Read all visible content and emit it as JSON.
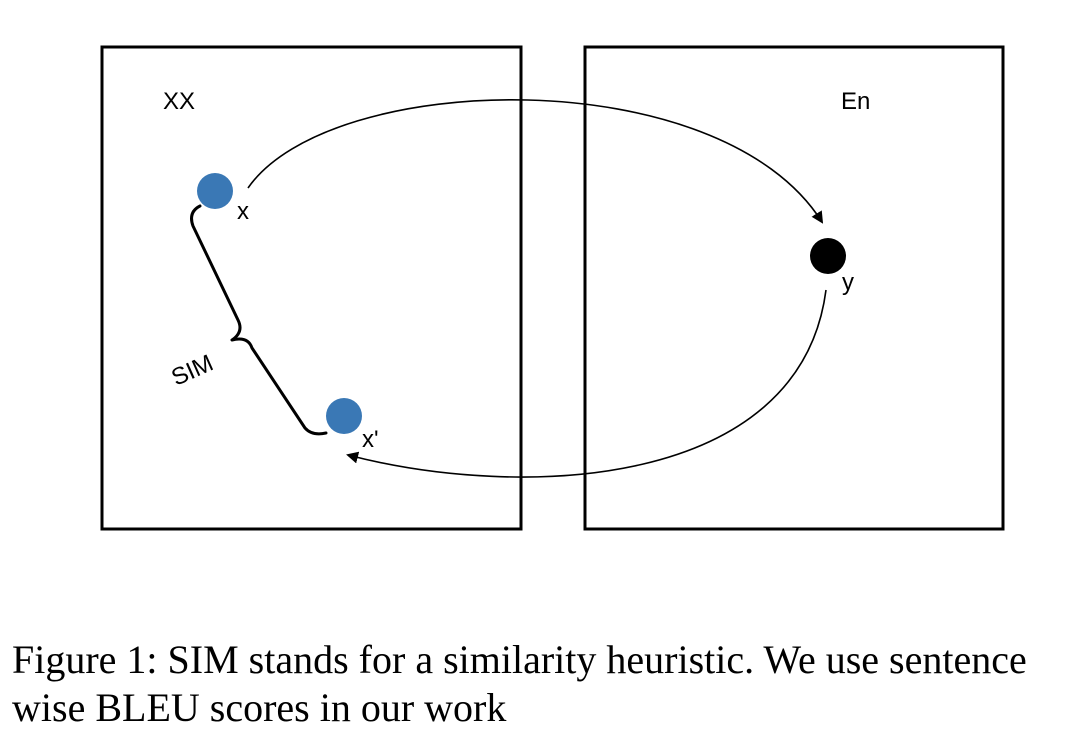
{
  "diagram": {
    "left_box_label": "XX",
    "right_box_label": "En",
    "node_x_label": "x",
    "node_y_label": "y",
    "node_xprime_label": "x'",
    "brace_label": "SIM",
    "colors": {
      "source_point": "#3a78b5",
      "target_point": "#000000",
      "stroke": "#000000"
    }
  },
  "caption": {
    "prefix": "Figure 1: SIM stands for a similarity heuristic. We use sentence wise ",
    "smallcaps": "BLEU",
    "suffix": " scores in our work"
  }
}
